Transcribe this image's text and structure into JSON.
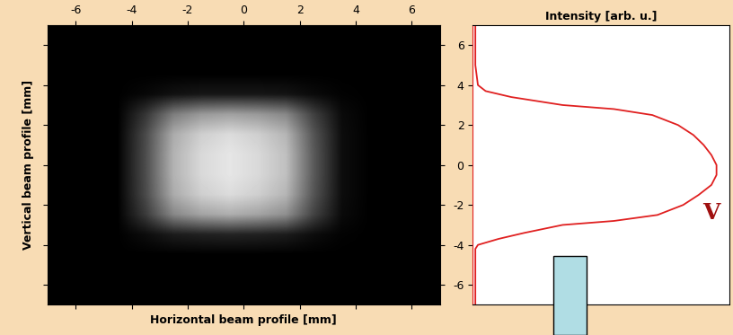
{
  "chart_data": [
    {
      "type": "heatmap",
      "x_label": "Horizontal beam profile [mm]",
      "y_label": "Vertical beam profile [mm]",
      "xlim": [
        -7,
        7
      ],
      "ylim": [
        -7,
        7
      ],
      "xticks": [
        -6,
        -4,
        -2,
        0,
        2,
        4,
        6
      ],
      "yticks": [
        -6,
        -4,
        -2,
        0,
        2,
        4,
        6
      ],
      "tick_labels": "x",
      "color_range": [
        0,
        1
      ],
      "cells": [
        [
          0,
          0,
          0,
          0,
          0,
          0,
          0,
          0,
          0,
          0,
          0,
          0,
          0,
          0
        ],
        [
          0,
          0,
          0,
          0,
          0,
          0,
          0,
          0,
          0,
          0,
          0,
          0,
          0,
          0
        ],
        [
          0,
          0,
          0,
          0,
          0,
          0,
          0,
          0,
          0,
          0,
          0,
          0,
          0,
          0
        ],
        [
          0,
          0,
          0,
          0.03,
          0.07,
          0.09,
          0.09,
          0.09,
          0.08,
          0.04,
          0.01,
          0,
          0,
          0
        ],
        [
          0,
          0,
          0,
          0.21,
          0.49,
          0.6,
          0.63,
          0.6,
          0.53,
          0.25,
          0.04,
          0,
          0,
          0
        ],
        [
          0,
          0,
          0,
          0.29,
          0.67,
          0.81,
          0.86,
          0.81,
          0.71,
          0.33,
          0.05,
          0,
          0,
          0
        ],
        [
          0,
          0,
          0,
          0.3,
          0.7,
          0.85,
          0.9,
          0.85,
          0.75,
          0.35,
          0.05,
          0,
          0,
          0
        ],
        [
          0,
          0,
          0,
          0.3,
          0.7,
          0.85,
          0.9,
          0.85,
          0.75,
          0.35,
          0.05,
          0,
          0,
          0
        ],
        [
          0,
          0,
          0,
          0.29,
          0.67,
          0.81,
          0.86,
          0.81,
          0.71,
          0.33,
          0.05,
          0,
          0,
          0
        ],
        [
          0,
          0,
          0,
          0.23,
          0.53,
          0.64,
          0.68,
          0.64,
          0.56,
          0.26,
          0.04,
          0,
          0,
          0
        ],
        [
          0,
          0,
          0,
          0.05,
          0.11,
          0.13,
          0.14,
          0.13,
          0.11,
          0.05,
          0.01,
          0,
          0,
          0
        ],
        [
          0,
          0,
          0,
          0,
          0,
          0,
          0,
          0,
          0,
          0,
          0,
          0,
          0,
          0
        ],
        [
          0,
          0,
          0,
          0,
          0,
          0,
          0,
          0,
          0,
          0,
          0,
          0,
          0,
          0
        ],
        [
          0,
          0,
          0,
          0,
          0,
          0,
          0,
          0,
          0,
          0,
          0,
          0,
          0,
          0
        ]
      ]
    },
    {
      "type": "line",
      "orientation": "horizontal",
      "title": "Intensity [arb. u.]",
      "annotation": "V",
      "x": [
        -7,
        -6,
        -5,
        -4.2,
        -4,
        -3.7,
        -3.4,
        -3,
        -2.8,
        -2.5,
        -2,
        -1.5,
        -1,
        -0.5,
        0,
        0.5,
        1,
        1.5,
        2,
        2.5,
        2.8,
        3,
        3.4,
        3.7,
        4,
        5,
        6,
        7
      ],
      "values": [
        0.01,
        0.01,
        0.01,
        0.01,
        0.02,
        0.1,
        0.2,
        0.35,
        0.55,
        0.72,
        0.82,
        0.88,
        0.93,
        0.95,
        0.95,
        0.93,
        0.9,
        0.86,
        0.8,
        0.7,
        0.55,
        0.35,
        0.15,
        0.05,
        0.02,
        0.01,
        0.01,
        0.01
      ],
      "color": "#e02020",
      "xlim": [
        0,
        1
      ],
      "ylim": [
        -7,
        7
      ],
      "yticks": [
        -6,
        -4,
        -2,
        0,
        2,
        4,
        6
      ],
      "tick_labels": "y",
      "grid": false
    }
  ]
}
